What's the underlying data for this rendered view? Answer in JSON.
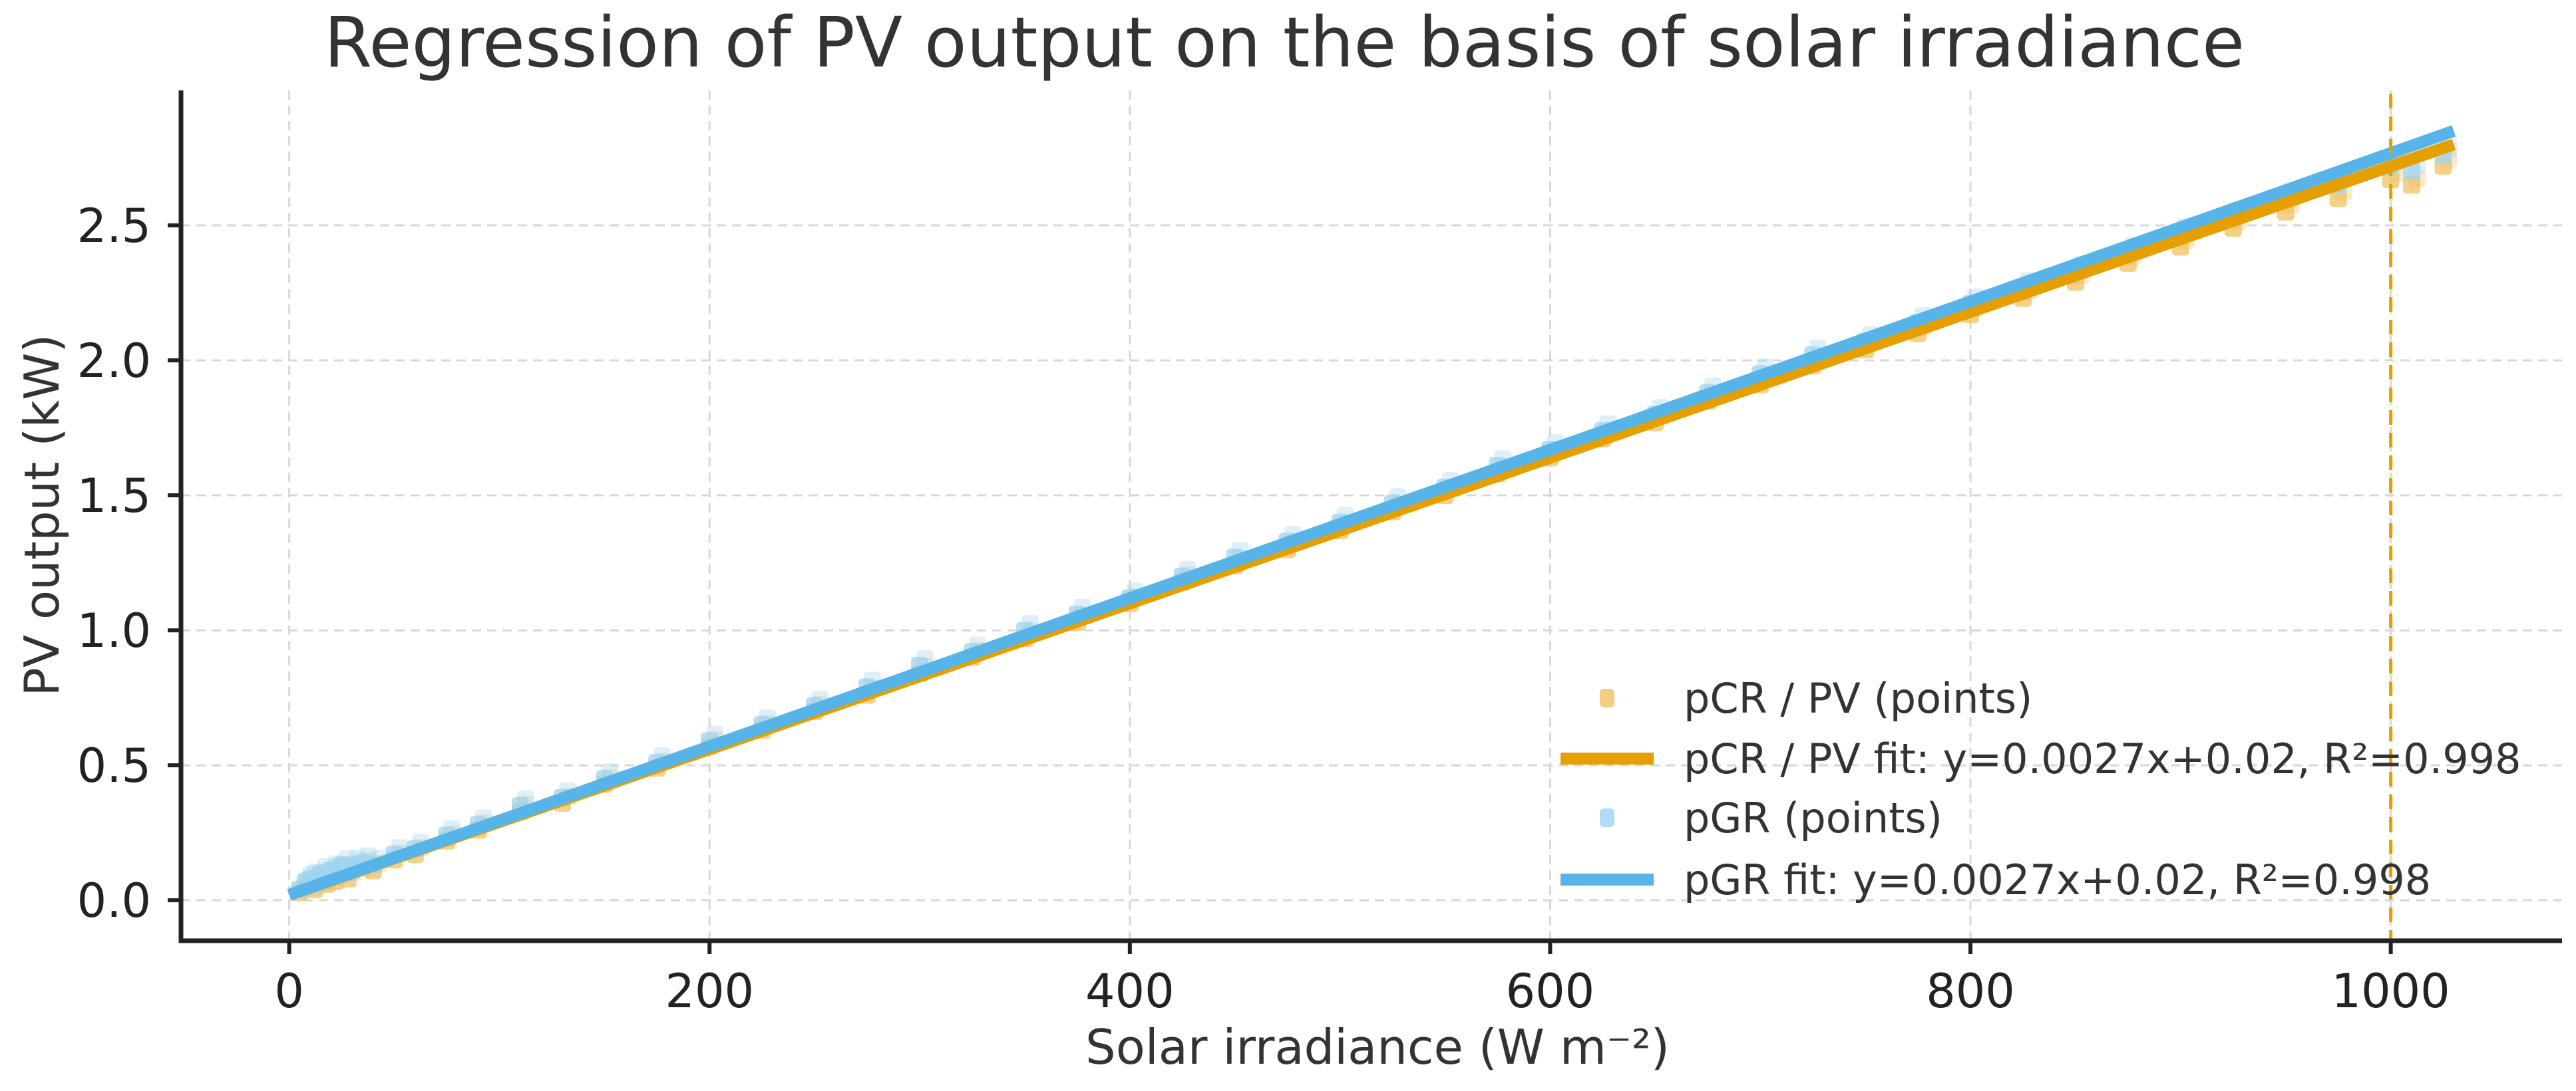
{
  "chart_data": {
    "type": "scatter",
    "title": "Regression of PV output on the basis of solar irradiance",
    "xlabel": "Solar irradiance (W m⁻²)",
    "ylabel": "PV output (kW)",
    "xlim": [
      -51.5,
      1081.5
    ],
    "ylim": [
      -0.15,
      3.0
    ],
    "xticks": [
      0,
      200,
      400,
      600,
      800,
      1000
    ],
    "xtick_labels": [
      "0",
      "200",
      "400",
      "600",
      "800",
      "1000"
    ],
    "yticks": [
      0.0,
      0.5,
      1.0,
      1.5,
      2.0,
      2.5
    ],
    "ytick_labels": [
      "0.0",
      "0.5",
      "1.0",
      "1.5",
      "2.0",
      "2.5"
    ],
    "grid": true,
    "legend_position": "bottom-right",
    "vline": {
      "x": 1000,
      "color": "#E69F00",
      "style": "dashed"
    },
    "series": [
      {
        "name": "pCR / PV (points)",
        "kind": "points",
        "color": "#F0C060",
        "x": [
          5,
          8,
          10,
          12,
          15,
          18,
          20,
          22,
          25,
          28,
          30,
          35,
          40,
          50,
          60,
          75,
          90,
          110,
          130,
          150,
          175,
          200,
          225,
          250,
          275,
          300,
          325,
          350,
          375,
          400,
          425,
          450,
          475,
          500,
          525,
          550,
          575,
          600,
          625,
          650,
          675,
          700,
          725,
          750,
          775,
          800,
          825,
          850,
          875,
          900,
          925,
          950,
          975,
          1000,
          1010,
          1025
        ],
        "y": [
          0.03,
          0.05,
          0.06,
          0.04,
          0.07,
          0.06,
          0.09,
          0.07,
          0.1,
          0.08,
          0.11,
          0.12,
          0.11,
          0.15,
          0.17,
          0.22,
          0.26,
          0.33,
          0.36,
          0.43,
          0.49,
          0.57,
          0.63,
          0.7,
          0.76,
          0.84,
          0.9,
          0.97,
          1.03,
          1.1,
          1.18,
          1.24,
          1.3,
          1.37,
          1.44,
          1.5,
          1.58,
          1.64,
          1.71,
          1.77,
          1.85,
          1.91,
          1.98,
          2.04,
          2.1,
          2.17,
          2.23,
          2.29,
          2.36,
          2.42,
          2.49,
          2.55,
          2.6,
          2.67,
          2.65,
          2.72
        ]
      },
      {
        "name": "pCR / PV fit: y=0.0027x+0.02, R²=0.998",
        "kind": "fit",
        "color": "#E69F00",
        "slope": 0.0027,
        "intercept": 0.02,
        "r2": 0.998,
        "x": [
          0,
          1030
        ],
        "y": [
          0.02,
          2.8
        ]
      },
      {
        "name": "pGR (points)",
        "kind": "points",
        "color": "#9FD3F2",
        "x": [
          5,
          8,
          10,
          12,
          15,
          18,
          20,
          22,
          25,
          28,
          30,
          35,
          40,
          50,
          60,
          75,
          90,
          110,
          130,
          150,
          175,
          200,
          225,
          250,
          275,
          300,
          325,
          350,
          375,
          400,
          425,
          450,
          475,
          500,
          525,
          550,
          575,
          600,
          625,
          650,
          675,
          700,
          725,
          750,
          775,
          800,
          825,
          850,
          875,
          900,
          925,
          950,
          975,
          1000,
          1010,
          1025
        ],
        "y": [
          0.04,
          0.07,
          0.08,
          0.06,
          0.1,
          0.09,
          0.11,
          0.1,
          0.13,
          0.1,
          0.13,
          0.14,
          0.13,
          0.17,
          0.19,
          0.24,
          0.28,
          0.35,
          0.38,
          0.45,
          0.51,
          0.59,
          0.65,
          0.72,
          0.79,
          0.87,
          0.92,
          1.0,
          1.06,
          1.12,
          1.2,
          1.27,
          1.33,
          1.4,
          1.47,
          1.53,
          1.61,
          1.67,
          1.74,
          1.8,
          1.88,
          1.95,
          2.02,
          2.07,
          2.14,
          2.21,
          2.27,
          2.33,
          2.4,
          2.47,
          2.53,
          2.6,
          2.65,
          2.72,
          2.7,
          2.76
        ]
      },
      {
        "name": "pGR fit: y=0.0027x+0.02, R²=0.998",
        "kind": "fit",
        "color": "#56B4E9",
        "slope": 0.0027,
        "intercept": 0.02,
        "r2": 0.998,
        "x": [
          0,
          1030
        ],
        "y": [
          0.02,
          2.85
        ]
      }
    ]
  }
}
